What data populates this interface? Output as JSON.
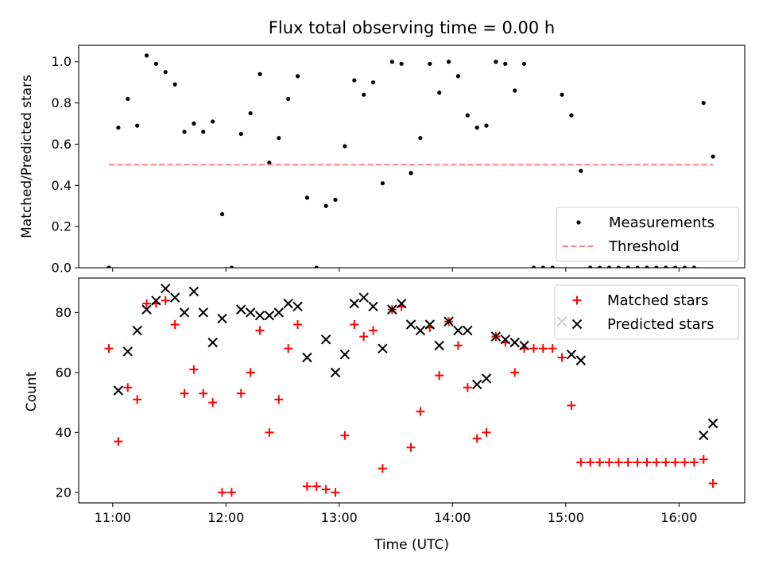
{
  "chart_data": [
    {
      "type": "scatter",
      "title": "Flux total observing time = 0.00 h",
      "xlabel": "",
      "ylabel": "Matched/Predicted stars",
      "xlim_hours": [
        10.7,
        16.58
      ],
      "ylim": [
        0,
        1.08
      ],
      "yticks": [
        0.0,
        0.2,
        0.4,
        0.6,
        0.8,
        1.0
      ],
      "ytick_labels": [
        "0.0",
        "0.2",
        "0.4",
        "0.6",
        "0.8",
        "1.0"
      ],
      "xticks": [
        "11:00",
        "12:00",
        "13:00",
        "14:00",
        "15:00",
        "16:00"
      ],
      "show_xtick_labels": false,
      "legend_position": "lower right",
      "series": [
        {
          "name": "Measurements",
          "kind": "points",
          "color": "#000000",
          "points": [
            [
              "10:58",
              0.0
            ],
            [
              "11:03",
              0.68
            ],
            [
              "11:08",
              0.82
            ],
            [
              "11:13",
              0.69
            ],
            [
              "11:18",
              1.03
            ],
            [
              "11:23",
              0.99
            ],
            [
              "11:28",
              0.95
            ],
            [
              "11:33",
              0.89
            ],
            [
              "11:38",
              0.66
            ],
            [
              "11:43",
              0.7
            ],
            [
              "11:48",
              0.66
            ],
            [
              "11:53",
              0.71
            ],
            [
              "11:58",
              0.26
            ],
            [
              "12:03",
              0.0
            ],
            [
              "12:08",
              0.65
            ],
            [
              "12:13",
              0.75
            ],
            [
              "12:18",
              0.94
            ],
            [
              "12:23",
              0.51
            ],
            [
              "12:28",
              0.63
            ],
            [
              "12:33",
              0.82
            ],
            [
              "12:38",
              0.93
            ],
            [
              "12:43",
              0.34
            ],
            [
              "12:48",
              0.0
            ],
            [
              "12:53",
              0.3
            ],
            [
              "12:58",
              0.33
            ],
            [
              "13:03",
              0.59
            ],
            [
              "13:08",
              0.91
            ],
            [
              "13:13",
              0.84
            ],
            [
              "13:18",
              0.9
            ],
            [
              "13:23",
              0.41
            ],
            [
              "13:28",
              1.0
            ],
            [
              "13:33",
              0.99
            ],
            [
              "13:38",
              0.46
            ],
            [
              "13:43",
              0.63
            ],
            [
              "13:48",
              0.99
            ],
            [
              "13:53",
              0.85
            ],
            [
              "13:58",
              1.0
            ],
            [
              "14:03",
              0.93
            ],
            [
              "14:08",
              0.74
            ],
            [
              "14:13",
              0.68
            ],
            [
              "14:18",
              0.69
            ],
            [
              "14:23",
              1.0
            ],
            [
              "14:28",
              0.99
            ],
            [
              "14:33",
              0.86
            ],
            [
              "14:38",
              0.99
            ],
            [
              "14:43",
              0.0
            ],
            [
              "14:48",
              0.0
            ],
            [
              "14:53",
              0.0
            ],
            [
              "14:58",
              0.84
            ],
            [
              "15:03",
              0.74
            ],
            [
              "15:08",
              0.47
            ],
            [
              "15:13",
              0.0
            ],
            [
              "15:18",
              0.0
            ],
            [
              "15:23",
              0.0
            ],
            [
              "15:28",
              0.0
            ],
            [
              "15:33",
              0.0
            ],
            [
              "15:38",
              0.0
            ],
            [
              "15:43",
              0.0
            ],
            [
              "15:48",
              0.0
            ],
            [
              "15:53",
              0.0
            ],
            [
              "15:58",
              0.0
            ],
            [
              "16:03",
              0.0
            ],
            [
              "16:08",
              0.0
            ],
            [
              "16:13",
              0.8
            ],
            [
              "16:18",
              0.54
            ]
          ]
        },
        {
          "name": "Threshold",
          "kind": "dashed-line",
          "color": "#ff7f7f",
          "points": [
            [
              "10:58",
              0.5
            ],
            [
              "16:18",
              0.5
            ]
          ]
        }
      ]
    },
    {
      "type": "scatter",
      "title": "",
      "xlabel": "Time (UTC)",
      "ylabel": "Count",
      "xlim_hours": [
        10.7,
        16.58
      ],
      "ylim": [
        16.5,
        91.5
      ],
      "yticks": [
        20,
        40,
        60,
        80
      ],
      "ytick_labels": [
        "20",
        "40",
        "60",
        "80"
      ],
      "xticks": [
        "11:00",
        "12:00",
        "13:00",
        "14:00",
        "15:00",
        "16:00"
      ],
      "show_xtick_labels": true,
      "legend_position": "upper right",
      "series": [
        {
          "name": "Matched stars",
          "kind": "plus",
          "color": "#ff0000",
          "points": [
            [
              "10:58",
              68
            ],
            [
              "11:03",
              37
            ],
            [
              "11:08",
              55
            ],
            [
              "11:13",
              51
            ],
            [
              "11:18",
              83
            ],
            [
              "11:23",
              83
            ],
            [
              "11:28",
              84
            ],
            [
              "11:33",
              76
            ],
            [
              "11:38",
              53
            ],
            [
              "11:43",
              61
            ],
            [
              "11:48",
              53
            ],
            [
              "11:53",
              50
            ],
            [
              "11:58",
              20
            ],
            [
              "12:03",
              20
            ],
            [
              "12:08",
              53
            ],
            [
              "12:13",
              60
            ],
            [
              "12:18",
              74
            ],
            [
              "12:23",
              40
            ],
            [
              "12:28",
              51
            ],
            [
              "12:33",
              68
            ],
            [
              "12:38",
              76
            ],
            [
              "12:43",
              22
            ],
            [
              "12:48",
              22
            ],
            [
              "12:53",
              21
            ],
            [
              "12:58",
              20
            ],
            [
              "13:03",
              39
            ],
            [
              "13:08",
              76
            ],
            [
              "13:13",
              72
            ],
            [
              "13:18",
              74
            ],
            [
              "13:23",
              28
            ],
            [
              "13:28",
              81
            ],
            [
              "13:33",
              82
            ],
            [
              "13:38",
              35
            ],
            [
              "13:43",
              47
            ],
            [
              "13:48",
              75
            ],
            [
              "13:53",
              59
            ],
            [
              "13:58",
              77
            ],
            [
              "14:03",
              69
            ],
            [
              "14:08",
              55
            ],
            [
              "14:13",
              38
            ],
            [
              "14:18",
              40
            ],
            [
              "14:23",
              72
            ],
            [
              "14:28",
              70
            ],
            [
              "14:33",
              60
            ],
            [
              "14:38",
              68
            ],
            [
              "14:43",
              68
            ],
            [
              "14:48",
              68
            ],
            [
              "14:53",
              68
            ],
            [
              "14:58",
              65
            ],
            [
              "15:03",
              49
            ],
            [
              "15:08",
              30
            ],
            [
              "15:13",
              30
            ],
            [
              "15:18",
              30
            ],
            [
              "15:23",
              30
            ],
            [
              "15:28",
              30
            ],
            [
              "15:33",
              30
            ],
            [
              "15:38",
              30
            ],
            [
              "15:43",
              30
            ],
            [
              "15:48",
              30
            ],
            [
              "15:53",
              30
            ],
            [
              "15:58",
              30
            ],
            [
              "16:03",
              30
            ],
            [
              "16:08",
              30
            ],
            [
              "16:13",
              31
            ],
            [
              "16:18",
              23
            ]
          ]
        },
        {
          "name": "Predicted stars",
          "kind": "x",
          "color": "#000000",
          "points": [
            [
              "11:03",
              54
            ],
            [
              "11:08",
              67
            ],
            [
              "11:13",
              74
            ],
            [
              "11:18",
              81
            ],
            [
              "11:23",
              84
            ],
            [
              "11:28",
              88
            ],
            [
              "11:33",
              85
            ],
            [
              "11:38",
              80
            ],
            [
              "11:43",
              87
            ],
            [
              "11:48",
              80
            ],
            [
              "11:53",
              70
            ],
            [
              "11:58",
              78
            ],
            [
              "12:08",
              81
            ],
            [
              "12:13",
              80
            ],
            [
              "12:18",
              79
            ],
            [
              "12:23",
              79
            ],
            [
              "12:28",
              80
            ],
            [
              "12:33",
              83
            ],
            [
              "12:38",
              82
            ],
            [
              "12:43",
              65
            ],
            [
              "12:53",
              71
            ],
            [
              "12:58",
              60
            ],
            [
              "13:03",
              66
            ],
            [
              "13:08",
              83
            ],
            [
              "13:13",
              85
            ],
            [
              "13:18",
              82
            ],
            [
              "13:23",
              68
            ],
            [
              "13:28",
              81
            ],
            [
              "13:33",
              83
            ],
            [
              "13:38",
              76
            ],
            [
              "13:43",
              74
            ],
            [
              "13:48",
              76
            ],
            [
              "13:53",
              69
            ],
            [
              "13:58",
              77
            ],
            [
              "14:03",
              74
            ],
            [
              "14:08",
              74
            ],
            [
              "14:13",
              56
            ],
            [
              "14:18",
              58
            ],
            [
              "14:23",
              72
            ],
            [
              "14:28",
              71
            ],
            [
              "14:33",
              70
            ],
            [
              "14:38",
              69
            ],
            [
              "14:58",
              77
            ],
            [
              "15:03",
              66
            ],
            [
              "15:08",
              64
            ],
            [
              "16:13",
              39
            ],
            [
              "16:18",
              43
            ]
          ]
        }
      ]
    }
  ]
}
